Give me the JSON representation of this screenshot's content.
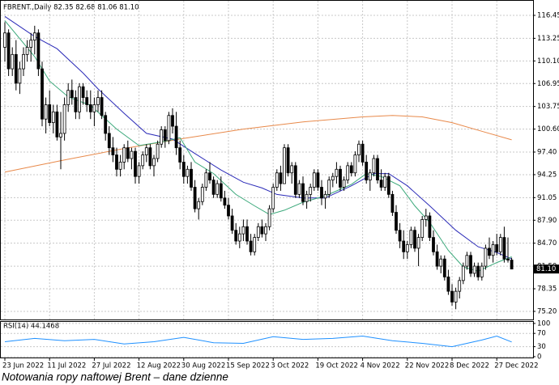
{
  "chart_data": [
    {
      "type": "candlestick",
      "title": "FBRENT.,Daily  82.35 82.68 81.06 81.10",
      "categories": [
        "23 Jun 2022",
        null,
        null,
        null,
        null,
        null,
        null,
        null,
        null,
        null,
        null,
        null,
        "11 Jul 2022",
        null,
        null,
        null,
        null,
        null,
        null,
        null,
        null,
        null,
        null,
        null,
        "27 Jul 2022",
        null,
        null,
        null,
        null,
        null,
        null,
        null,
        null,
        null,
        null,
        null,
        "12 Aug 2022",
        null,
        null,
        null,
        null,
        null,
        null,
        null,
        null,
        null,
        null,
        null,
        "30 Aug 2022",
        null,
        null,
        null,
        null,
        null,
        null,
        null,
        null,
        null,
        null,
        null,
        "15 Sep 2022",
        null,
        null,
        null,
        null,
        null,
        null,
        null,
        null,
        null,
        null,
        null,
        "3 Oct 2022",
        null,
        null,
        null,
        null,
        null,
        null,
        null,
        null,
        null,
        null,
        null,
        "19 Oct 2022",
        null,
        null,
        null,
        null,
        null,
        null,
        null,
        null,
        null,
        null,
        null,
        "4 Nov 2022",
        null,
        null,
        null,
        null,
        null,
        null,
        null,
        null,
        null,
        null,
        null,
        "22 Nov 2022",
        null,
        null,
        null,
        null,
        null,
        null,
        null,
        null,
        null,
        null,
        null,
        "8 Dec 2022",
        null,
        null,
        null,
        null,
        null,
        null,
        null,
        null,
        null,
        null,
        null,
        "27 Dec 2022",
        null,
        null,
        null,
        null
      ],
      "open": [
        112,
        114,
        109,
        111,
        107,
        109,
        111,
        112,
        113,
        114,
        109,
        102,
        104,
        101.5,
        103,
        99.5,
        100,
        104,
        106,
        105,
        103,
        106.5,
        105,
        104,
        103,
        104,
        105,
        102.5,
        100,
        98,
        97,
        95,
        96,
        98,
        96.5,
        97.5,
        94,
        95.5,
        97,
        98,
        95.5,
        96.5,
        98.5,
        100.5,
        99,
        102.5,
        101,
        98,
        96,
        94,
        95,
        92.5,
        89.5,
        90.5,
        92.5,
        94.5,
        93.5,
        91.5,
        93,
        91,
        90,
        88.5,
        86.5,
        85,
        86,
        87,
        85,
        83.5,
        85.5,
        87,
        86,
        87,
        89.5,
        92.5,
        94.5,
        93,
        98,
        94.5,
        95.5,
        91.5,
        93,
        90.5,
        91.5,
        92.5,
        94.5,
        92.5,
        91,
        91.5,
        93.5,
        94,
        95,
        92.5,
        93.5,
        95.5,
        94.5,
        97,
        98.5,
        96,
        93.5,
        94.5,
        96.5,
        93.5,
        92.5,
        94,
        91.5,
        89,
        86.5,
        85,
        83.5,
        84.5,
        86.5,
        84,
        85.5,
        88,
        88.5,
        85.5,
        83.5,
        81.5,
        82.5,
        80,
        78,
        76.5,
        78,
        79.5,
        81.5,
        83,
        80.5,
        81.5,
        80,
        81.5,
        84,
        83,
        84.5,
        83.5,
        85.5,
        82.5,
        82.35
      ],
      "high": [
        115.5,
        114.5,
        112,
        113,
        110,
        112,
        113,
        114,
        115,
        114.5,
        110,
        105,
        106,
        104,
        104,
        103,
        105,
        107,
        107.5,
        106,
        107,
        107,
        106,
        106,
        105,
        106,
        106,
        103,
        101,
        99.5,
        98,
        97,
        98.5,
        99,
        98,
        98,
        96,
        97.5,
        98.5,
        98.5,
        97,
        99,
        101,
        101,
        103,
        103.5,
        103,
        99,
        97,
        95.5,
        96,
        93.5,
        91,
        93,
        95,
        96,
        94,
        93.5,
        94,
        92,
        91,
        89.5,
        87.5,
        87,
        88,
        88,
        86,
        86,
        87.5,
        88,
        87.5,
        90,
        93,
        95,
        95.5,
        98.5,
        98.5,
        96,
        96,
        93.5,
        94,
        92,
        93,
        95,
        95,
        93.5,
        92,
        94,
        94.5,
        96,
        95.5,
        94,
        96,
        96,
        97.5,
        99,
        99,
        97,
        95,
        97,
        97,
        95,
        94.5,
        94.5,
        92,
        90,
        87.5,
        86.5,
        85,
        87,
        87,
        86,
        88.5,
        89.5,
        89,
        86.5,
        84.5,
        83,
        83,
        81,
        79,
        78.5,
        80,
        82,
        83.5,
        83.5,
        82,
        82,
        82,
        84.5,
        85.5,
        85,
        86,
        86,
        87,
        85.5,
        82.68
      ],
      "low": [
        110,
        108,
        108,
        106,
        105.5,
        108,
        110,
        110,
        111,
        108,
        101,
        100,
        101,
        100,
        99,
        95,
        99,
        103,
        104,
        102,
        102,
        104,
        103,
        102,
        101,
        103,
        102,
        99,
        97,
        96,
        94,
        94,
        95,
        96,
        95,
        93,
        93,
        95,
        96,
        95,
        94,
        96,
        98,
        98,
        98.5,
        100,
        97,
        95,
        93,
        93,
        92,
        89,
        88,
        90,
        92,
        93,
        91,
        91,
        90.5,
        89.5,
        88,
        86,
        84.5,
        84,
        85,
        84.5,
        83,
        83,
        85,
        85.5,
        85,
        86.5,
        89,
        92,
        92,
        93,
        94,
        93,
        91,
        91,
        90,
        89.5,
        90.5,
        92,
        92,
        90,
        89.5,
        91,
        92.5,
        93,
        92,
        92,
        93,
        94,
        94,
        96,
        95.5,
        93,
        92,
        94,
        93,
        92,
        92,
        91,
        88.5,
        86,
        84,
        82.5,
        82.5,
        84,
        83.5,
        81.5,
        85,
        87,
        85,
        83,
        81,
        80.5,
        79.5,
        77.5,
        76,
        75.5,
        77,
        79,
        81,
        80,
        80,
        79.5,
        79.5,
        81,
        82.5,
        82,
        83,
        83,
        82,
        82,
        81.06
      ],
      "close": [
        114,
        109,
        111,
        107,
        109,
        111,
        112,
        113,
        114,
        109,
        102,
        104,
        101.5,
        103,
        99.5,
        100,
        104,
        106,
        105,
        103,
        106.5,
        105,
        104,
        103,
        104,
        105,
        102.5,
        100,
        98,
        97,
        95,
        96,
        98,
        96.5,
        97.5,
        94,
        95.5,
        97,
        98,
        95.5,
        96.5,
        98.5,
        100.5,
        99,
        102.5,
        101,
        98,
        96,
        94,
        95,
        92.5,
        89.5,
        90.5,
        92.5,
        94.5,
        93.5,
        91.5,
        93,
        91,
        90,
        88.5,
        86.5,
        85,
        86,
        87,
        85,
        83.5,
        85.5,
        87,
        86,
        87,
        89.5,
        92.5,
        94.5,
        93,
        98,
        94.5,
        95.5,
        91.5,
        93,
        90.5,
        91.5,
        92.5,
        94.5,
        92.5,
        91,
        91.5,
        93.5,
        94,
        95,
        92.5,
        93.5,
        95.5,
        94.5,
        97,
        98.5,
        96,
        93.5,
        94.5,
        96.5,
        93.5,
        92.5,
        94,
        91.5,
        89,
        86.5,
        85,
        83.5,
        84.5,
        86.5,
        84,
        85.5,
        88,
        88.5,
        85.5,
        83.5,
        81.5,
        82.5,
        80,
        78,
        76.5,
        78,
        79.5,
        81.5,
        83,
        80.5,
        81.5,
        80,
        81.5,
        84,
        83,
        84.5,
        83.5,
        85.5,
        82.5,
        82.35,
        81.1
      ],
      "up_color": "#ffffff",
      "down_color": "#000000",
      "edge_color": "#000000",
      "current_price_label": "81.10",
      "ylim": [
        74.07,
        118.59
      ],
      "yticks": [
        116.45,
        113.25,
        {
          "value": 110.1,
          "label": "110.10"
        },
        106.95,
        103.75,
        {
          "value": 100.6,
          "label": "100.60"
        },
        {
          "value": 97.4,
          "label": "97.40"
        },
        94.25,
        91.05,
        {
          "value": 87.9,
          "label": "87.90"
        },
        {
          "value": 84.7,
          "label": "84.70"
        },
        {
          "value": 81.5,
          "label": "81.50"
        },
        78.35,
        {
          "value": 75.2,
          "label": "75.20"
        }
      ],
      "grid": true,
      "overlays": [
        {
          "color": "#e8894a",
          "x": [
            0,
            16,
            32,
            48,
            64,
            80,
            96,
            104,
            112,
            120,
            128,
            136
          ],
          "values": [
            94.6,
            96.3,
            97.9,
            99.3,
            100.6,
            101.6,
            102.3,
            102.5,
            102.3,
            101.5,
            100.3,
            99.1
          ]
        },
        {
          "color": "#2b2bb8",
          "x": [
            0,
            8,
            14,
            21,
            25,
            32,
            38,
            45,
            51,
            58,
            64,
            69,
            73,
            80,
            86,
            93,
            99,
            103,
            108,
            114,
            121,
            127,
            132,
            136
          ],
          "values": [
            116.3,
            113.5,
            111.8,
            108.4,
            106.2,
            102.8,
            100.0,
            99.2,
            97.2,
            94.9,
            93.2,
            92.4,
            91.5,
            91.0,
            91.0,
            92.7,
            94.4,
            94.4,
            92.7,
            89.9,
            86.5,
            84.2,
            83.4,
            82.5
          ]
        },
        {
          "color": "#3aa87a",
          "x": [
            0,
            8,
            12,
            17,
            23,
            30,
            36,
            43,
            47,
            51,
            56,
            62,
            67,
            71,
            75,
            80,
            86,
            93,
            97,
            101,
            106,
            110,
            114,
            119,
            123,
            127,
            132,
            136
          ],
          "values": [
            115.7,
            110.7,
            107.3,
            105.1,
            103.9,
            100.6,
            98.3,
            98.9,
            99.4,
            96.0,
            94.4,
            91.5,
            89.9,
            88.7,
            89.3,
            90.4,
            91.3,
            92.9,
            94.4,
            94.0,
            92.7,
            89.9,
            87.6,
            83.7,
            81.4,
            80.8,
            82.0,
            82.8
          ]
        }
      ]
    },
    {
      "type": "line",
      "title": "RSI(14) 44.1468",
      "x": [
        0,
        8,
        16,
        24,
        32,
        40,
        48,
        56,
        64,
        72,
        80,
        88,
        96,
        104,
        112,
        120,
        128,
        132,
        136
      ],
      "values": [
        45,
        55,
        48,
        52,
        38,
        45,
        58,
        42,
        40,
        60,
        52,
        55,
        62,
        48,
        40,
        30,
        50,
        62,
        44.1468
      ],
      "color": "#1e90ff",
      "ylim": [
        -5,
        107
      ],
      "yticks": [
        0,
        30,
        70,
        100
      ],
      "grid": true
    }
  ],
  "caption": "Notowania ropy naftowej Brent – dane dzienne"
}
